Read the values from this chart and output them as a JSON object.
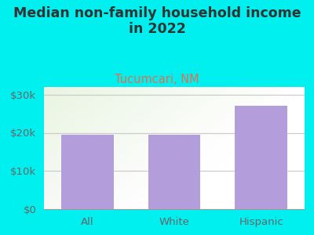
{
  "categories": [
    "All",
    "White",
    "Hispanic"
  ],
  "values": [
    19500,
    19500,
    27000
  ],
  "bar_color": "#b39ddb",
  "title": "Median non-family household income\nin 2022",
  "subtitle": "Tucumcari, NM",
  "subtitle_color": "#e07050",
  "title_color": "#333333",
  "ylim": [
    0,
    32000
  ],
  "yticks": [
    0,
    10000,
    20000,
    30000
  ],
  "ytick_labels": [
    "$0",
    "$10k",
    "$20k",
    "$30k"
  ],
  "background_color": "#00f0f0",
  "grid_color": "#cccccc",
  "title_fontsize": 12.5,
  "subtitle_fontsize": 10.5,
  "tick_fontsize": 9.5,
  "bar_width": 0.6
}
